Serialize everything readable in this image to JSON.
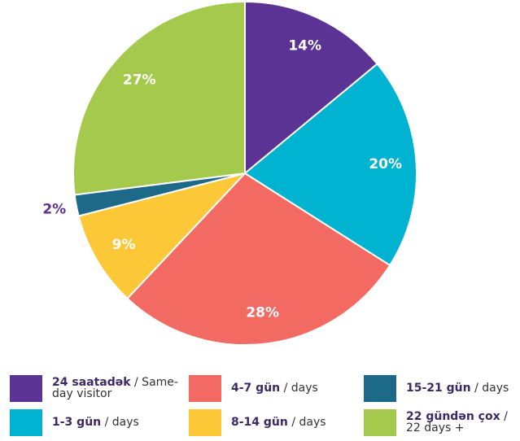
{
  "chart_data": {
    "type": "pie",
    "categories": [
      "24 saatadək",
      "1-3 gün",
      "4-7 gün",
      "8-14 gün",
      "15-21 gün",
      "22 gündən çox"
    ],
    "category_notes": [
      "/ Same-day visitor",
      "/ days",
      "/ days",
      "/ days",
      "/ days",
      "/ 22 days +"
    ],
    "values": [
      14,
      20,
      28,
      9,
      2,
      27
    ],
    "value_labels": [
      "14%",
      "20%",
      "28%",
      "9%",
      "2%",
      "27%"
    ],
    "colors": [
      "#5a3395",
      "#00b3d1",
      "#f26a62",
      "#fdc838",
      "#1d6a88",
      "#a5c94c"
    ]
  }
}
